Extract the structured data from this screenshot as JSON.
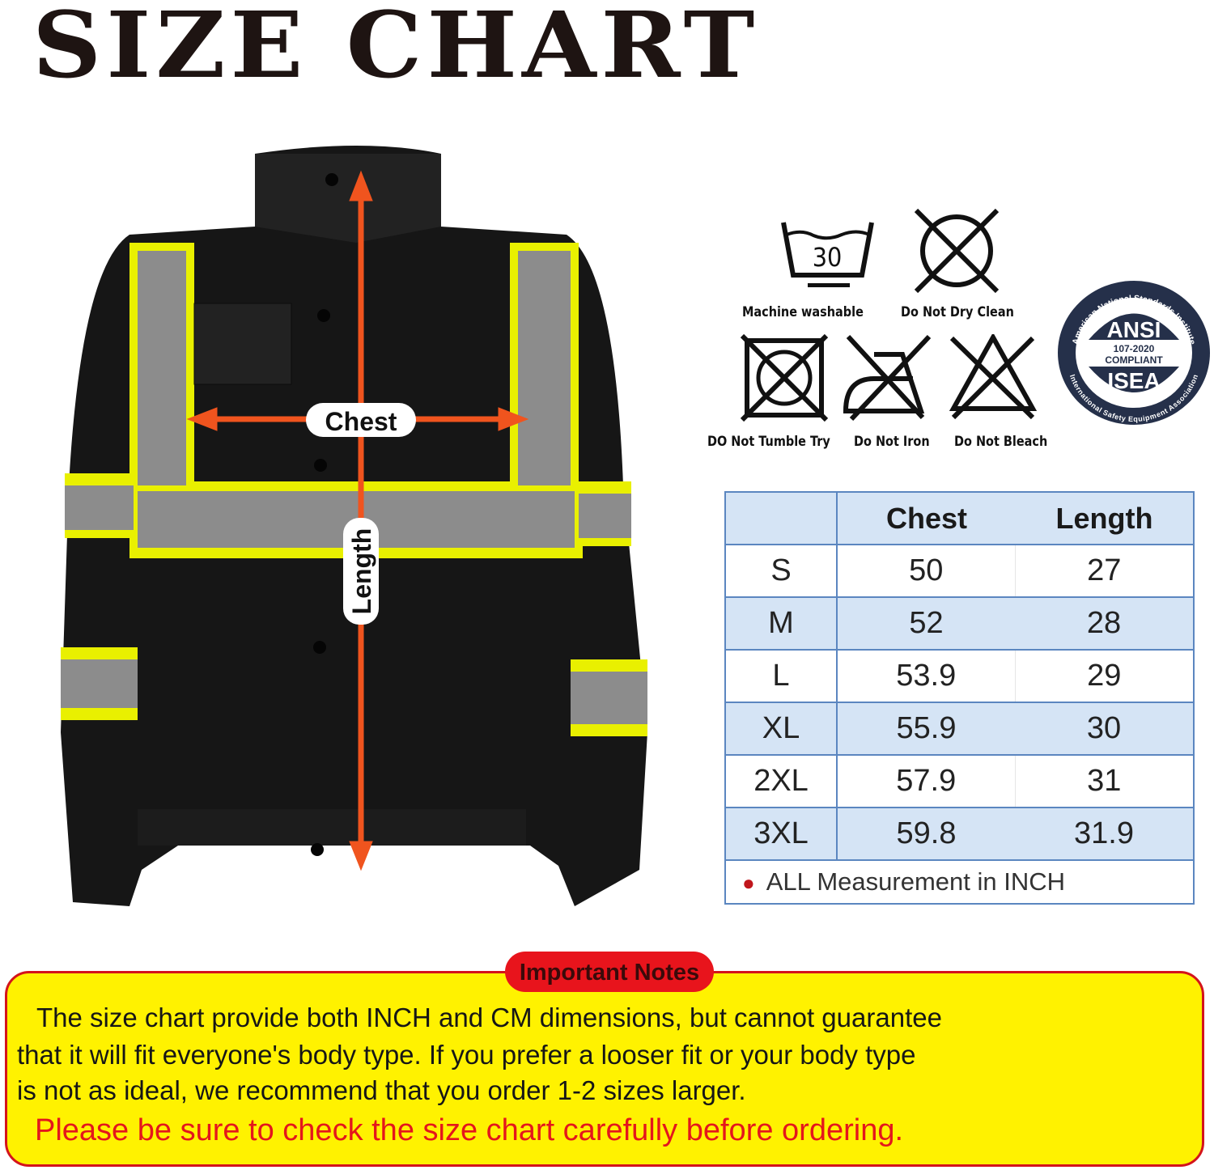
{
  "title": "SIZE CHART",
  "jacket": {
    "chest_label": "Chest",
    "length_label": "Length",
    "arrow_color": "#f0541e"
  },
  "care": {
    "wash_temp": "30",
    "items": [
      {
        "icon": "machine-wash-30-icon",
        "label": "Machine washable"
      },
      {
        "icon": "do-not-dry-clean-icon",
        "label": "Do Not Dry Clean"
      },
      {
        "icon": "do-not-tumble-dry-icon",
        "label": "DO Not Tumble Try"
      },
      {
        "icon": "do-not-iron-icon",
        "label": "Do Not Iron"
      },
      {
        "icon": "do-not-bleach-icon",
        "label": "Do Not Bleach"
      }
    ]
  },
  "badge": {
    "top_arc": "American National Standards Institute",
    "bottom_arc": "International Safety Equipment Association",
    "ansi": "ANSI",
    "standard": "107-2020",
    "compliant": "COMPLIANT",
    "isea": "ISEA"
  },
  "table": {
    "headers": [
      "",
      "Chest",
      "Length"
    ],
    "rows": [
      [
        "S",
        "50",
        "27"
      ],
      [
        "M",
        "52",
        "28"
      ],
      [
        "L",
        "53.9",
        "29"
      ],
      [
        "XL",
        "55.9",
        "30"
      ],
      [
        "2XL",
        "57.9",
        "31"
      ],
      [
        "3XL",
        "59.8",
        "31.9"
      ]
    ],
    "footnote": "ALL Measurement in INCH",
    "header_bg": "#d5e4f5",
    "border_color": "#5b86c0"
  },
  "notes": {
    "tag": "Important Notes",
    "lines": [
      "The size chart provide both INCH and CM dimensions, but cannot guarantee",
      "that it will fit everyone's body type. If you prefer a looser fit or your body type",
      "is not as ideal, we recommend that you order 1-2 sizes larger."
    ],
    "warning": "Please be sure to check the size chart carefully before ordering.",
    "bg": "#fff200",
    "border": "#d4141b"
  }
}
